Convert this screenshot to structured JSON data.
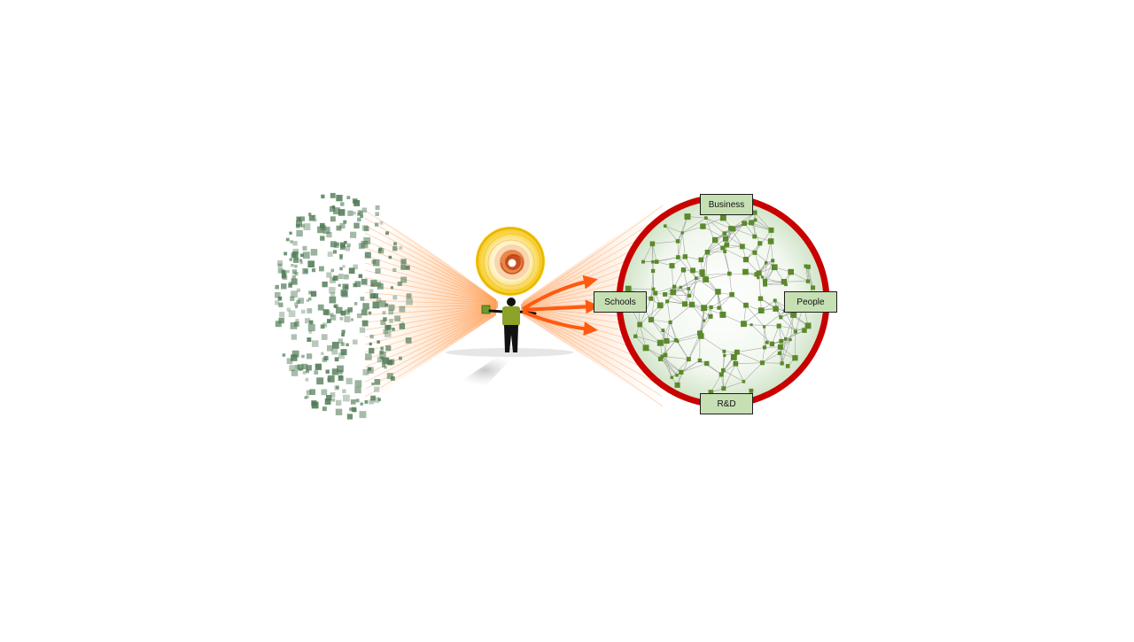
{
  "labels": {
    "business": "Business",
    "schools": "Schools",
    "people": "People",
    "rd": "R&D"
  },
  "colors": {
    "particle": "#4f7a55",
    "beam": "#ff7a1a",
    "ring": "#cc0000",
    "hub_fill": "#e2efdc",
    "node": "#5a8a2a",
    "link": "#8f8f8f",
    "label_fill": "#c6e0b4"
  },
  "icons": [
    "particle-cloud-graphic",
    "spiral-orb-graphic",
    "person-figure-graphic",
    "network-ring-graphic"
  ]
}
